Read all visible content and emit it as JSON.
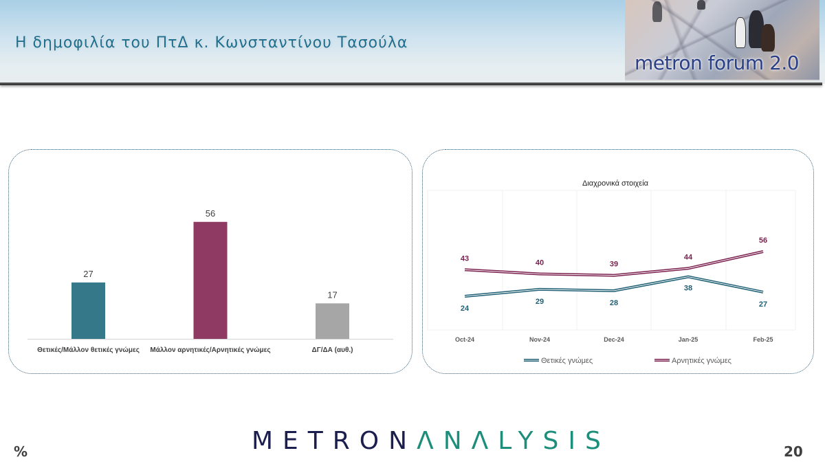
{
  "header": {
    "title": "Η δημοφιλία του ΠτΔ κ. Κωνσταντίνου Τασούλα",
    "logo_text": "metron forum 2.0"
  },
  "footer": {
    "unit": "%",
    "brand_part1": "METRON",
    "brand_part2": "ΛNΛLYSIS",
    "page_number": "20"
  },
  "colors": {
    "positive": "#35788a",
    "negative": "#8e3a62",
    "dont_know": "#a6a6a6",
    "title": "#1f6f8e"
  },
  "chart_data": [
    {
      "type": "bar",
      "title": "",
      "categories": [
        "Θετικές/Μάλλον θετικές γνώμες",
        "Μάλλον αρνητικές/Αρνητικές γνώμες",
        "ΔΓ/ΔΑ (αυθ.)"
      ],
      "values": [
        27,
        56,
        17
      ],
      "colors": [
        "#35788a",
        "#8e3a62",
        "#a6a6a6"
      ],
      "xlabel": "",
      "ylabel": "%",
      "ylim": [
        0,
        60
      ],
      "grid": false,
      "data_labels": true
    },
    {
      "type": "line",
      "title": "Διαχρονικά στοιχεία",
      "categories": [
        "Oct-24",
        "Nov-24",
        "Dec-24",
        "Jan-25",
        "Feb-25"
      ],
      "series": [
        {
          "name": "Θετικές γνώμες",
          "values": [
            24,
            29,
            28,
            38,
            27
          ],
          "color": "#1e5f73"
        },
        {
          "name": "Αρνητικές γνώμες",
          "values": [
            43,
            40,
            39,
            44,
            56
          ],
          "color": "#7a1f4e"
        }
      ],
      "xlabel": "",
      "ylabel": "%",
      "legend_position": "bottom",
      "grid": "vertical",
      "data_labels": true
    }
  ]
}
